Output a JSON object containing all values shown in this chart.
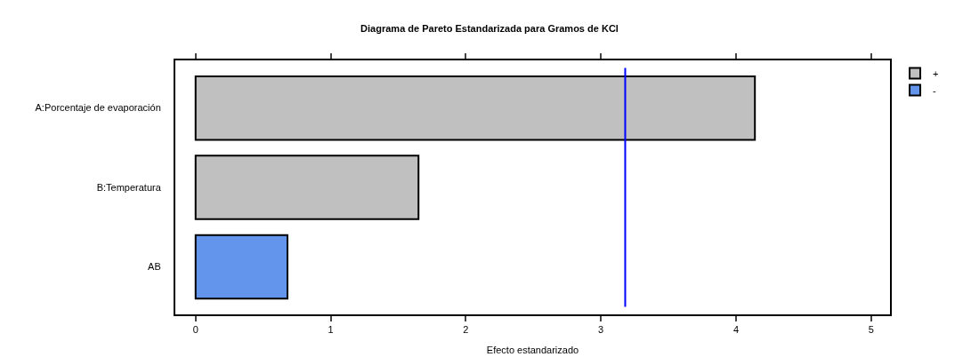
{
  "chart_data": {
    "type": "bar",
    "orientation": "horizontal",
    "title": "Diagrama de Pareto Estandarizada para Gramos de KCl",
    "xlabel": "Efecto estandarizado",
    "categories": [
      "A:Porcentaje de evaporación",
      "B:Temperatura",
      "AB"
    ],
    "series": [
      {
        "name": "+",
        "color": "#c0c0c0",
        "values": [
          4.14,
          1.65,
          null
        ]
      },
      {
        "name": "-",
        "color": "#6495ed",
        "values": [
          null,
          null,
          0.68
        ]
      }
    ],
    "xlim": [
      -0.15,
      5.14
    ],
    "xticks": [
      0,
      1,
      2,
      3,
      4,
      5
    ],
    "grid": false,
    "legend": "top right",
    "ref_lines": [
      {
        "axis": "x",
        "value": 3.18,
        "color": "#0000ff",
        "line_style": "solid"
      }
    ]
  }
}
